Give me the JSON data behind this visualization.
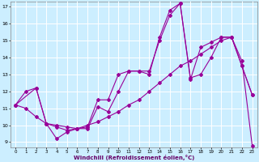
{
  "title": "",
  "xlabel": "Windchill (Refroidissement éolien,°C)",
  "background_color": "#cceeff",
  "grid_color": "#ffffff",
  "line_color": "#990099",
  "xlim_min": -0.5,
  "xlim_max": 23.5,
  "ylim_min": 8.7,
  "ylim_max": 17.3,
  "xticks": [
    0,
    1,
    2,
    3,
    4,
    5,
    6,
    7,
    8,
    9,
    10,
    11,
    12,
    13,
    14,
    15,
    16,
    17,
    18,
    19,
    20,
    21,
    22,
    23
  ],
  "yticks": [
    9,
    10,
    11,
    12,
    13,
    14,
    15,
    16,
    17
  ],
  "line1_x": [
    0,
    1,
    2,
    3,
    4,
    5,
    6,
    7,
    8,
    9,
    10,
    11,
    12,
    13,
    14,
    15,
    16,
    17,
    18,
    19,
    20,
    21,
    22,
    23
  ],
  "line1_y": [
    11.2,
    12.0,
    12.2,
    10.1,
    10.0,
    9.9,
    9.8,
    9.8,
    11.1,
    10.8,
    12.0,
    13.2,
    13.2,
    13.2,
    15.0,
    16.5,
    17.2,
    12.8,
    13.0,
    14.0,
    15.2,
    15.2,
    13.5,
    11.8
  ],
  "line2_x": [
    0,
    2,
    3,
    4,
    5,
    6,
    7,
    8,
    9,
    10,
    11,
    12,
    13,
    14,
    15,
    16,
    17,
    18,
    19,
    20,
    21,
    22,
    23
  ],
  "line2_y": [
    11.2,
    12.2,
    10.1,
    9.9,
    9.7,
    9.8,
    9.9,
    11.5,
    11.5,
    13.0,
    13.2,
    13.2,
    13.0,
    15.2,
    16.8,
    17.2,
    12.7,
    14.6,
    14.9,
    15.2,
    15.2,
    13.5,
    11.8
  ],
  "line3_x": [
    0,
    1,
    2,
    3,
    4,
    5,
    6,
    7,
    8,
    9,
    10,
    11,
    12,
    13,
    14,
    15,
    16,
    17,
    18,
    19,
    20,
    21,
    22,
    23
  ],
  "line3_y": [
    11.2,
    11.0,
    10.5,
    10.1,
    9.2,
    9.6,
    9.8,
    10.0,
    10.2,
    10.5,
    10.8,
    11.2,
    11.5,
    12.0,
    12.5,
    13.0,
    13.5,
    13.8,
    14.2,
    14.6,
    15.0,
    15.2,
    13.8,
    8.8
  ]
}
